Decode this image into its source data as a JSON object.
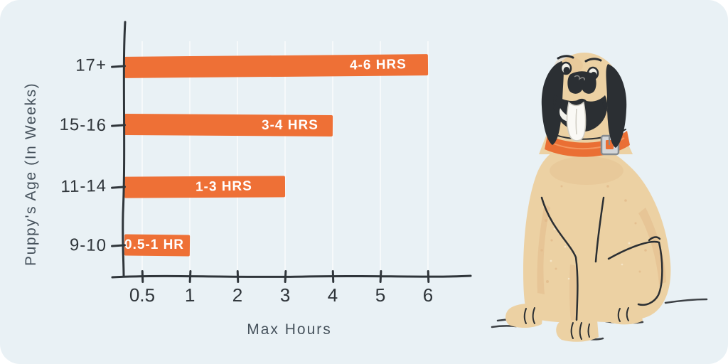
{
  "colors": {
    "background": "#ffffff",
    "card": "#e9f1f5",
    "bar_orange": "#ee7036",
    "axis_dark": "#2f353a",
    "tick_text": "#2f353a",
    "axis_title_text": "#46525c",
    "bar_label_text": "#ffffff",
    "gridline": "#f6f9fa",
    "dog_body": "#ecd1a3",
    "dog_shade": "#e2b98a",
    "dog_dark": "#2b2f33",
    "dog_collar": "#ea6f34",
    "dog_tongue": "#faf9f5",
    "dog_buckle": "#d3d6d9"
  },
  "chart_data": {
    "type": "bar",
    "orientation": "horizontal",
    "xlabel": "Max Hours",
    "ylabel": "Puppy's Age (In Weeks)",
    "categories": [
      "17+",
      "15-16",
      "11-14",
      "9-10"
    ],
    "values": [
      6,
      4,
      3,
      1
    ],
    "bar_labels": [
      "4-6 HRS",
      "3-4 HRS",
      "1-3 HRS",
      "0.5-1 HR"
    ],
    "x_ticks": [
      "0.5",
      "1",
      "2",
      "3",
      "4",
      "5",
      "6"
    ],
    "xlim": [
      0,
      6.5
    ],
    "grid": "vertical-light",
    "legend": "none"
  },
  "illustration": {
    "description": "tan sitting dog with black floppy ears, open mouth with tongue out, orange collar with silver buckle"
  }
}
